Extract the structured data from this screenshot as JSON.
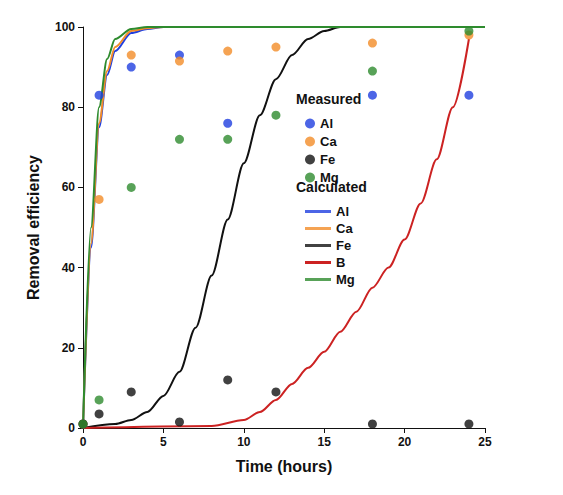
{
  "chart_data": {
    "type": "scatter",
    "x_label": "Time (hours)",
    "y_label": "Removal efficiency",
    "xlim": [
      0,
      25
    ],
    "xticks": [
      0,
      5,
      10,
      15,
      20,
      25
    ],
    "ylim": [
      0,
      100
    ],
    "yticks": [
      0,
      20,
      40,
      60,
      80,
      100
    ],
    "grid": false,
    "legend": "center",
    "groups": [
      {
        "label": "Measured",
        "series": [
          {
            "name": "Al",
            "type": "scatter",
            "marker": "circle",
            "color": "#1f3fe0",
            "x": [
              0,
              1,
              3,
              6,
              9,
              18,
              24
            ],
            "values": [
              1,
              83,
              90,
              93,
              76,
              83,
              83
            ]
          },
          {
            "name": "Ca",
            "type": "scatter",
            "marker": "circle",
            "color": "#f28c28",
            "x": [
              0,
              1,
              3,
              6,
              9,
              12,
              18,
              24
            ],
            "values": [
              1,
              57,
              93,
              91.5,
              94,
              95,
              96,
              98
            ]
          },
          {
            "name": "Fe",
            "type": "scatter",
            "marker": "circle",
            "color": "#111111",
            "x": [
              0,
              1,
              3,
              6,
              9,
              12,
              18,
              24
            ],
            "values": [
              1,
              3.5,
              9,
              1.5,
              12,
              9,
              1,
              1
            ]
          },
          {
            "name": "Mg",
            "type": "scatter",
            "marker": "circle",
            "color": "#2e8b2e",
            "x": [
              0,
              1,
              3,
              6,
              9,
              12,
              18,
              24
            ],
            "values": [
              1,
              7,
              60,
              72,
              72,
              78,
              89,
              99
            ]
          }
        ]
      },
      {
        "label": "Calculated",
        "series": [
          {
            "name": "Al",
            "type": "line",
            "line_style": "solid",
            "color": "#1f3fe0",
            "x": [
              0,
              0.5,
              1,
              1.5,
              2,
              3,
              4,
              5,
              25
            ],
            "values": [
              0,
              45,
              75,
              88,
              94,
              98.5,
              99.5,
              100,
              100
            ]
          },
          {
            "name": "Ca",
            "type": "line",
            "line_style": "solid",
            "color": "#f28c28",
            "x": [
              0,
              0.5,
              1,
              1.5,
              2,
              3,
              4,
              5,
              25
            ],
            "values": [
              0,
              46,
              76,
              89,
              95,
              99,
              99.7,
              100,
              100
            ]
          },
          {
            "name": "Fe",
            "type": "line",
            "line_style": "solid",
            "color": "#111111",
            "x": [
              0,
              2,
              3,
              4,
              5,
              6,
              7,
              8,
              9,
              10,
              11,
              12,
              13,
              14,
              15,
              16,
              25
            ],
            "values": [
              0,
              1,
              2,
              4,
              8,
              14,
              25,
              38,
              52,
              66,
              78,
              87,
              93,
              97,
              99,
              100,
              100
            ]
          },
          {
            "name": "B",
            "type": "line",
            "line_style": "solid",
            "color": "#cc2222",
            "x": [
              0,
              8,
              10,
              11,
              12,
              13,
              14,
              15,
              16,
              17,
              18,
              19,
              20,
              21,
              22,
              23,
              24
            ],
            "values": [
              0,
              0.5,
              2,
              4,
              7,
              11,
              15,
              19,
              24,
              29,
              35,
              40,
              47,
              56,
              67,
              80,
              97
            ]
          },
          {
            "name": "Mg",
            "type": "line",
            "line_style": "solid",
            "color": "#2e8b2e",
            "x": [
              0,
              0.5,
              1,
              1.5,
              2,
              3,
              4,
              25
            ],
            "values": [
              0,
              50,
              80,
              92,
              97,
              99.5,
              100,
              100
            ]
          }
        ]
      }
    ]
  }
}
